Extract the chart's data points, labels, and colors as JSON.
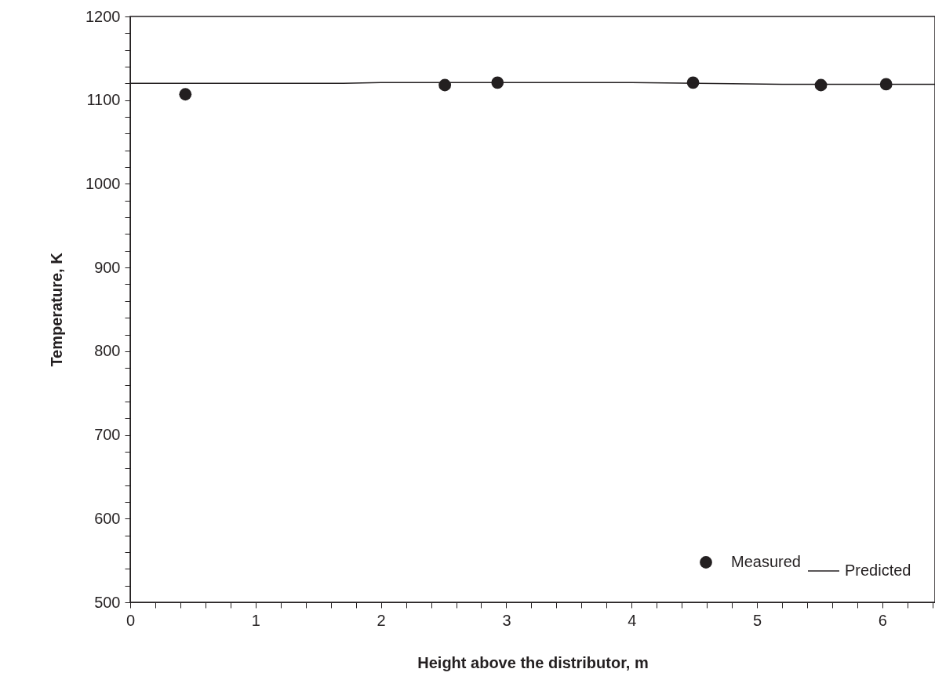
{
  "chart_data": {
    "type": "scatter",
    "xlabel": "Height above the distributor, m",
    "ylabel": "Temperature, K",
    "series": [
      {
        "name": "Measured",
        "type": "scatter",
        "color": "#231f20",
        "marker": "circle",
        "x": [
          0.44,
          2.51,
          2.93,
          4.49,
          5.51,
          6.03
        ],
        "values": [
          1107,
          1118,
          1121,
          1121,
          1118,
          1119
        ]
      },
      {
        "name": "Predicted",
        "type": "line",
        "color": "#231f20",
        "line_style": "solid",
        "marker": "none",
        "x": [
          0,
          1.7,
          2.0,
          4.0,
          5.2,
          6.42
        ],
        "values": [
          1120,
          1120,
          1121,
          1121,
          1119,
          1119
        ]
      }
    ],
    "xlim": [
      0,
      6.42
    ],
    "ylim": [
      500,
      1200
    ],
    "xticks": [
      0,
      {
        "value": 0.2,
        "label": null
      },
      {
        "value": 0.4,
        "label": null
      },
      {
        "value": 0.6,
        "label": null
      },
      {
        "value": 0.8,
        "label": null
      },
      1,
      {
        "value": 1.2,
        "label": null
      },
      {
        "value": 1.4,
        "label": null
      },
      {
        "value": 1.6,
        "label": null
      },
      {
        "value": 1.8,
        "label": null
      },
      2,
      {
        "value": 2.2,
        "label": null
      },
      {
        "value": 2.4,
        "label": null
      },
      {
        "value": 2.6,
        "label": null
      },
      {
        "value": 2.8,
        "label": null
      },
      3,
      {
        "value": 3.2,
        "label": null
      },
      {
        "value": 3.4,
        "label": null
      },
      {
        "value": 3.6,
        "label": null
      },
      {
        "value": 3.8,
        "label": null
      },
      4,
      {
        "value": 4.2,
        "label": null
      },
      {
        "value": 4.4,
        "label": null
      },
      {
        "value": 4.6,
        "label": null
      },
      {
        "value": 4.8,
        "label": null
      },
      5,
      {
        "value": 5.2,
        "label": null
      },
      {
        "value": 5.4,
        "label": null
      },
      {
        "value": 5.6,
        "label": null
      },
      {
        "value": 5.8,
        "label": null
      },
      6,
      {
        "value": 6.2,
        "label": null
      },
      {
        "value": 6.4,
        "label": null
      }
    ],
    "yticks": [
      500,
      {
        "value": 520,
        "label": null
      },
      {
        "value": 540,
        "label": null
      },
      {
        "value": 560,
        "label": null
      },
      {
        "value": 580,
        "label": null
      },
      600,
      {
        "value": 620,
        "label": null
      },
      {
        "value": 640,
        "label": null
      },
      {
        "value": 660,
        "label": null
      },
      {
        "value": 680,
        "label": null
      },
      700,
      {
        "value": 720,
        "label": null
      },
      {
        "value": 740,
        "label": null
      },
      {
        "value": 760,
        "label": null
      },
      {
        "value": 780,
        "label": null
      },
      800,
      {
        "value": 820,
        "label": null
      },
      {
        "value": 840,
        "label": null
      },
      {
        "value": 860,
        "label": null
      },
      {
        "value": 880,
        "label": null
      },
      900,
      {
        "value": 920,
        "label": null
      },
      {
        "value": 940,
        "label": null
      },
      {
        "value": 960,
        "label": null
      },
      {
        "value": 980,
        "label": null
      },
      1000,
      {
        "value": 1020,
        "label": null
      },
      {
        "value": 1040,
        "label": null
      },
      {
        "value": 1060,
        "label": null
      },
      {
        "value": 1080,
        "label": null
      },
      1100,
      {
        "value": 1120,
        "label": null
      },
      {
        "value": 1140,
        "label": null
      },
      {
        "value": 1160,
        "label": null
      },
      {
        "value": 1180,
        "label": null
      },
      1200
    ],
    "grid": false,
    "legend": "bottom right"
  }
}
